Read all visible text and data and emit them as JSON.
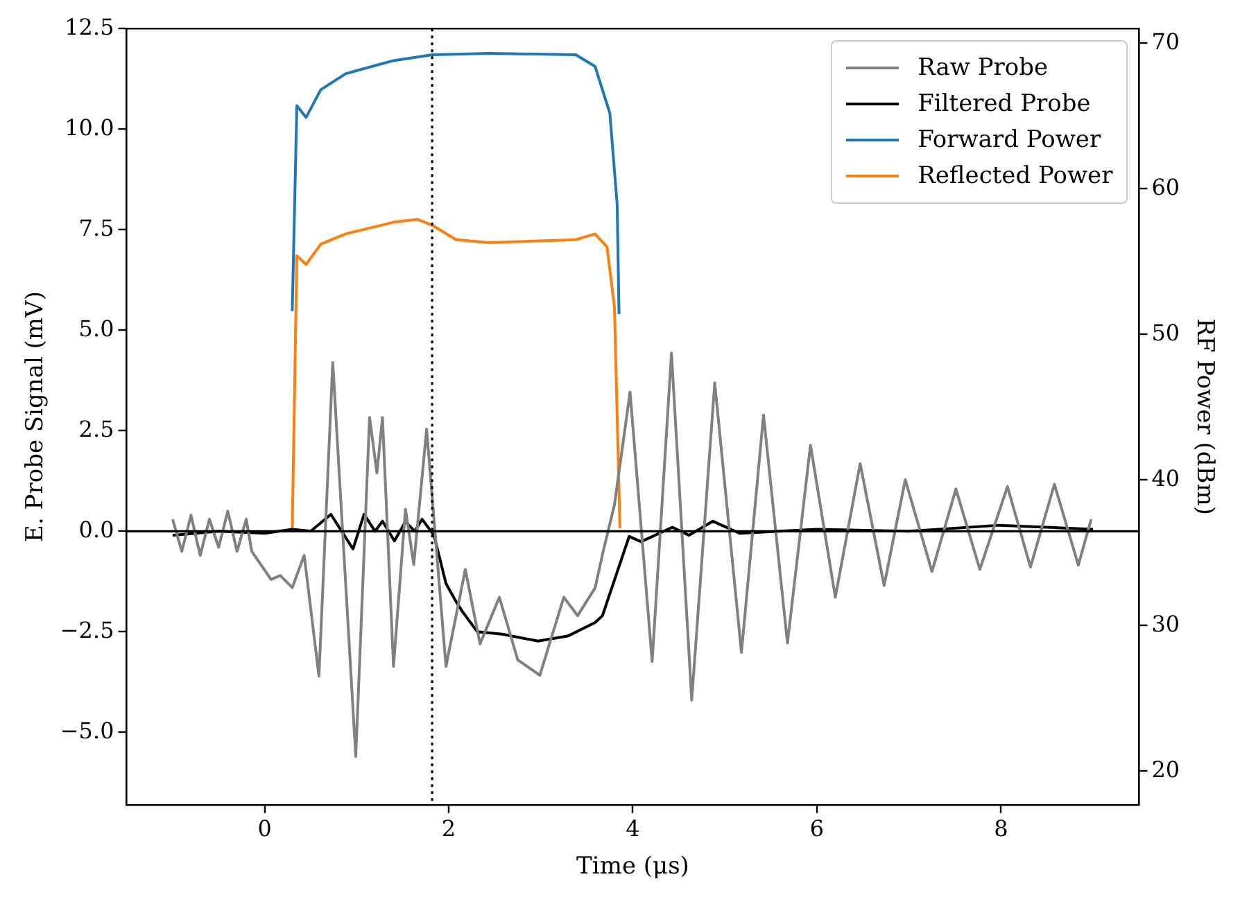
{
  "chart_data": {
    "type": "line",
    "xlabel": "Time (μs)",
    "ylabel": "E. Probe Signal (mV)",
    "y2label": "RF Power (dBm)",
    "xlim": [
      -1.5,
      9.5
    ],
    "ylim": [
      -6.8,
      12.5
    ],
    "y2lim": [
      17.7,
      71
    ],
    "xticks": [
      0,
      2,
      4,
      6,
      8
    ],
    "yticks": [
      {
        "value": -5,
        "label": "−5.0"
      },
      {
        "value": -2.5,
        "label": "−2.5"
      },
      {
        "value": 0,
        "label": "0.0"
      },
      {
        "value": 2.5,
        "label": "2.5"
      },
      {
        "value": 5,
        "label": "5.0"
      },
      {
        "value": 7.5,
        "label": "7.5"
      },
      {
        "value": 10,
        "label": "10.0"
      },
      {
        "value": 12.5,
        "label": "12.5"
      }
    ],
    "y2ticks": [
      20,
      30,
      40,
      50,
      60,
      70
    ],
    "legend": "top right",
    "series": [
      {
        "name": "Raw Probe",
        "color": "#808080",
        "x": [
          -1.0,
          -0.9,
          -0.8,
          -0.7,
          -0.6,
          -0.5,
          -0.4,
          -0.3,
          -0.2,
          -0.14,
          0.07,
          0.17,
          0.3,
          0.43,
          0.59,
          0.74,
          0.99,
          1.14,
          1.22,
          1.28,
          1.4,
          1.53,
          1.62,
          1.76,
          1.97,
          2.18,
          2.34,
          2.55,
          2.75,
          2.99,
          3.25,
          3.4,
          3.59,
          3.68,
          3.8,
          3.97,
          4.21,
          4.42,
          4.64,
          4.89,
          5.18,
          5.42,
          5.68,
          5.93,
          6.2,
          6.47,
          6.73,
          6.96,
          7.25,
          7.51,
          7.77,
          8.07,
          8.32,
          8.58,
          8.84,
          8.98
        ],
        "values": [
          0.3,
          -0.5,
          0.4,
          -0.6,
          0.3,
          -0.4,
          0.5,
          -0.5,
          0.3,
          -0.5,
          -1.2,
          -1.1,
          -1.4,
          -0.6,
          -3.6,
          4.2,
          -5.6,
          2.83,
          1.45,
          2.83,
          -3.36,
          0.55,
          -0.83,
          2.54,
          -3.36,
          -0.95,
          -2.8,
          -1.64,
          -3.2,
          -3.58,
          -1.64,
          -2.1,
          -1.41,
          -0.48,
          0.65,
          3.46,
          -3.24,
          4.43,
          -4.2,
          3.69,
          -3.01,
          2.89,
          -2.78,
          2.14,
          -1.64,
          1.68,
          -1.35,
          1.28,
          -1.0,
          1.05,
          -0.95,
          1.11,
          -0.89,
          1.17,
          -0.84,
          0.3
        ]
      },
      {
        "name": "Filtered Probe",
        "color": "#000000",
        "x": [
          -1.0,
          -0.5,
          0.0,
          0.3,
          0.5,
          0.72,
          0.96,
          1.08,
          1.2,
          1.28,
          1.41,
          1.53,
          1.63,
          1.71,
          1.84,
          1.97,
          2.08,
          2.15,
          2.31,
          2.58,
          2.97,
          3.3,
          3.59,
          3.67,
          3.96,
          4.09,
          4.43,
          4.61,
          4.87,
          5.16,
          6.0,
          7.0,
          7.98,
          9.0
        ],
        "values": [
          -0.1,
          0.0,
          -0.05,
          0.05,
          0.0,
          0.42,
          -0.44,
          0.42,
          0.0,
          0.25,
          -0.24,
          0.24,
          0.0,
          0.3,
          -0.1,
          -1.3,
          -1.75,
          -2.0,
          -2.5,
          -2.56,
          -2.73,
          -2.6,
          -2.27,
          -2.1,
          -0.13,
          -0.26,
          0.1,
          -0.1,
          0.25,
          -0.05,
          0.05,
          0.0,
          0.15,
          0.05
        ]
      },
      {
        "name": "Forward Power",
        "color": "#1f77b4",
        "axis": "y2",
        "x": [
          0.3,
          0.35,
          0.45,
          0.61,
          0.88,
          1.4,
          1.82,
          2.44,
          3.38,
          3.59,
          3.75,
          3.83,
          3.85
        ],
        "values": [
          51.6,
          65.7,
          64.9,
          66.8,
          67.9,
          68.8,
          69.2,
          69.3,
          69.2,
          68.4,
          65.2,
          58.9,
          51.4
        ]
      },
      {
        "name": "Reflected Power",
        "color": "#ff7f0e",
        "axis": "y2",
        "x": [
          0.3,
          0.35,
          0.45,
          0.61,
          0.88,
          1.4,
          1.66,
          1.82,
          2.08,
          2.44,
          3.38,
          3.59,
          3.72,
          3.8,
          3.86
        ],
        "values": [
          36.7,
          55.4,
          54.8,
          56.2,
          56.9,
          57.7,
          57.9,
          57.5,
          56.5,
          56.3,
          56.5,
          56.9,
          56.0,
          51.9,
          36.7
        ]
      }
    ],
    "ref_lines": [
      {
        "axis": "x",
        "value": 1.82,
        "color": "#000000",
        "line_style": "dotted"
      },
      {
        "axis": "y",
        "value": 0,
        "color": "#000000",
        "line_style": "solid"
      }
    ]
  }
}
